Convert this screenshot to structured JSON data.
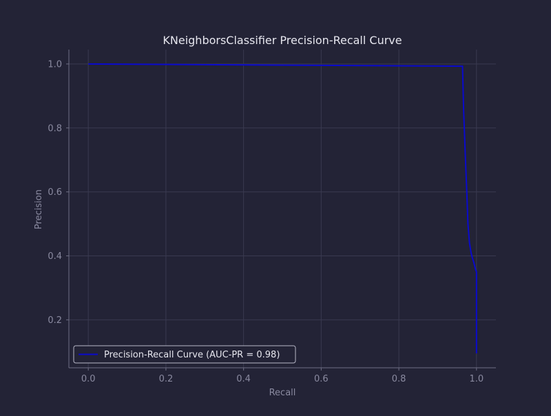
{
  "chart_data": {
    "type": "line",
    "title": "KNeighborsClassifier Precision-Recall Curve",
    "xlabel": "Recall",
    "ylabel": "Precision",
    "xlim": [
      -0.05,
      1.05
    ],
    "ylim": [
      0.05,
      1.045
    ],
    "xticks": [
      0.0,
      0.2,
      0.4,
      0.6,
      0.8,
      1.0
    ],
    "xtick_labels": [
      "0.0",
      "0.2",
      "0.4",
      "0.6",
      "0.8",
      "1.0"
    ],
    "yticks": [
      0.2,
      0.4,
      0.6,
      0.8,
      1.0
    ],
    "ytick_labels": [
      "0.2",
      "0.4",
      "0.6",
      "0.8",
      "1.0"
    ],
    "grid": true,
    "legend_position": "lower-left",
    "series": [
      {
        "name": "Precision-Recall Curve (AUC-PR = 0.98)",
        "color": "#0a0acd",
        "x": [
          0.0,
          0.964,
          0.967,
          0.971,
          0.975,
          0.978,
          0.982,
          0.986,
          0.989,
          0.993,
          0.996,
          0.998,
          1.0,
          1.0
        ],
        "y": [
          1.0,
          0.993,
          0.85,
          0.72,
          0.6,
          0.5,
          0.44,
          0.41,
          0.395,
          0.38,
          0.365,
          0.356,
          0.35,
          0.095
        ]
      }
    ]
  },
  "colors": {
    "background": "#232336",
    "text": "#e6e6ee",
    "muted": "#8a8aa0",
    "grid": "#3a3a50",
    "spine": "#6f6f85"
  }
}
